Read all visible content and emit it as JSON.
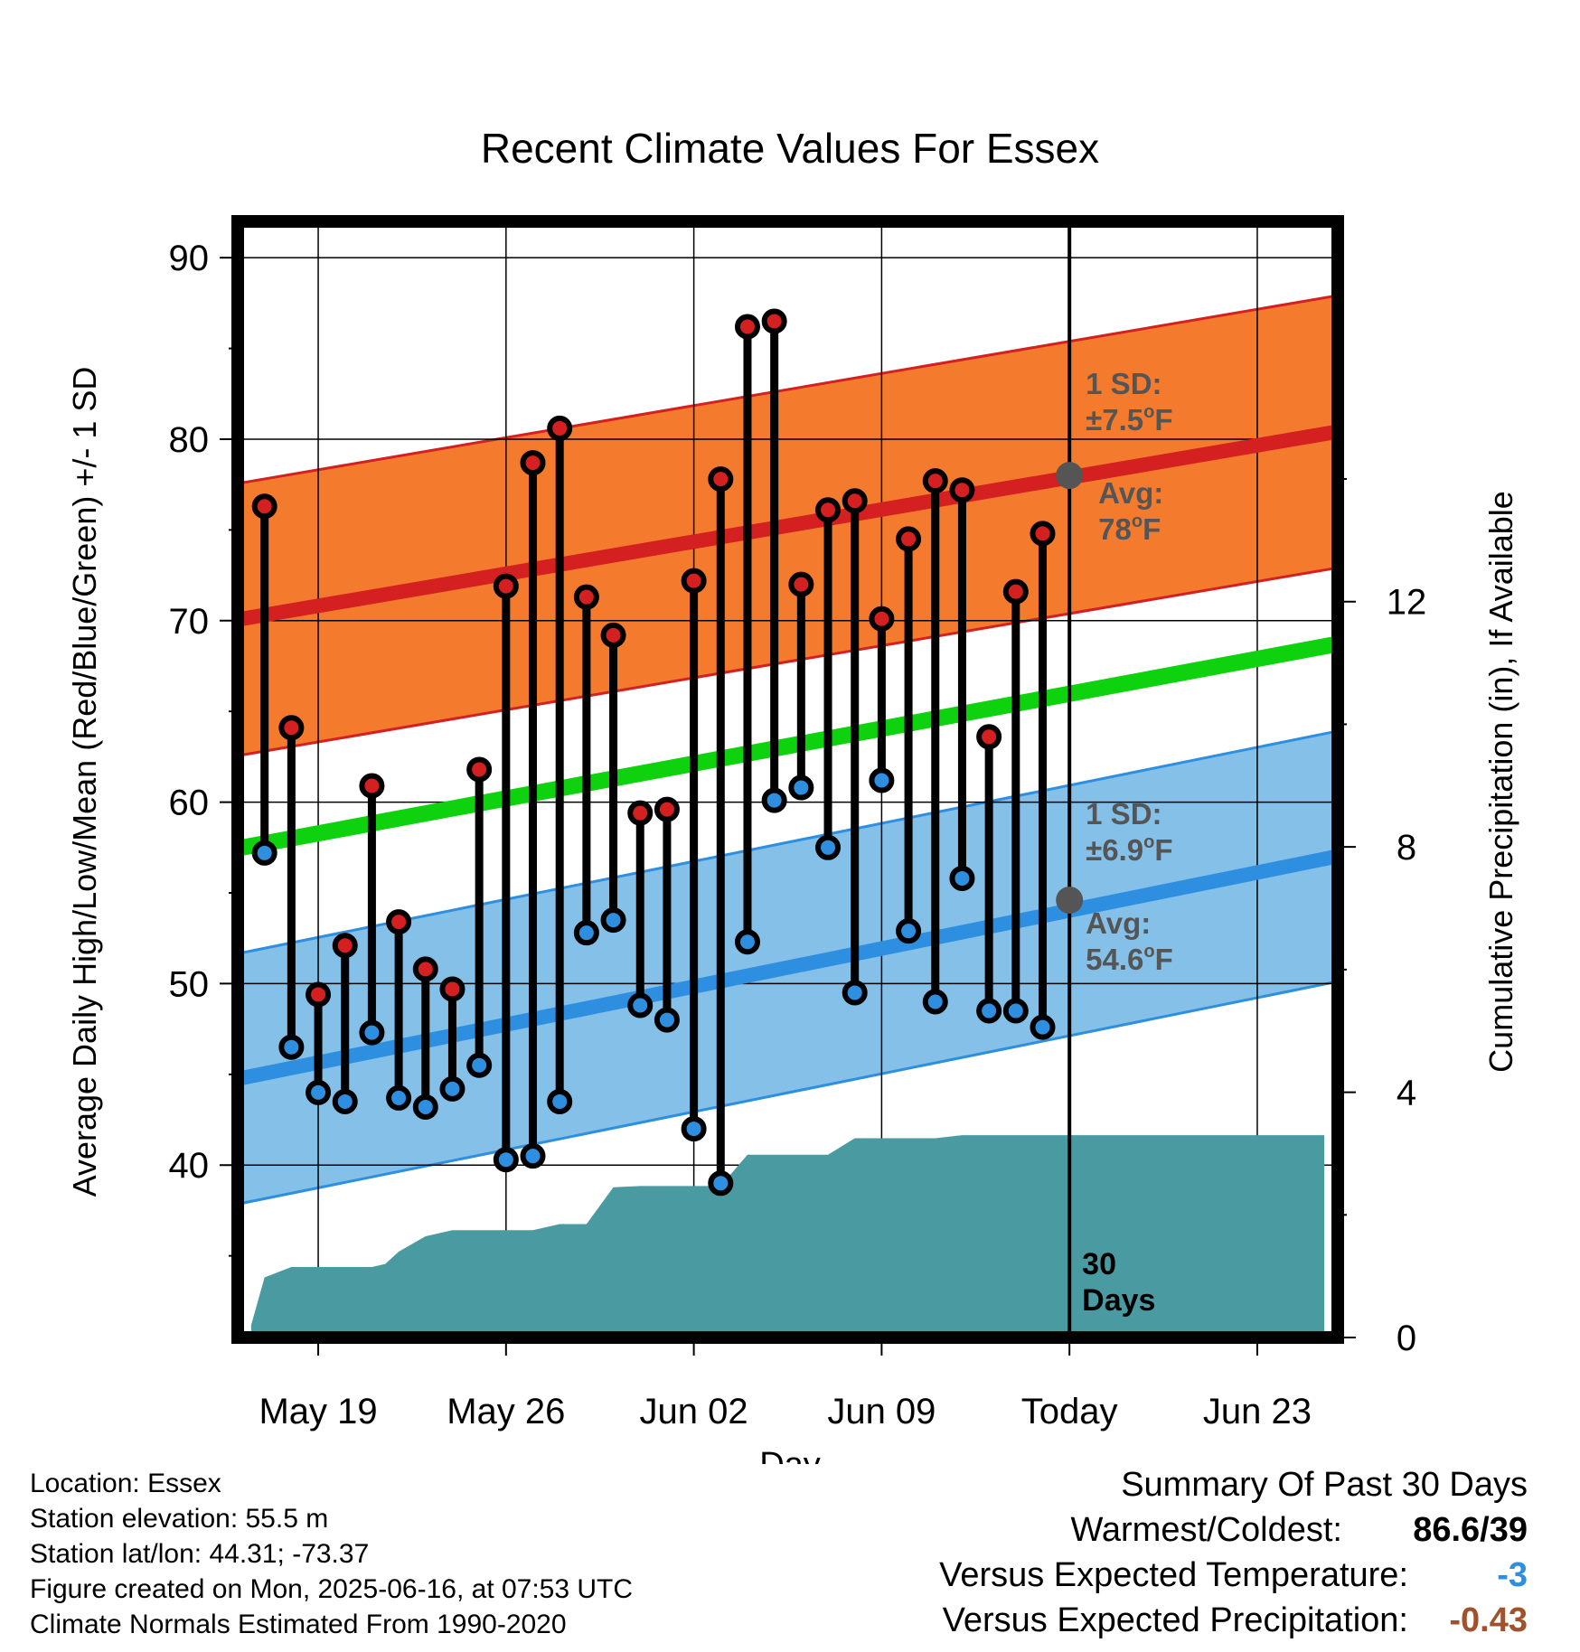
{
  "chart_data": {
    "type": "line",
    "title": "Recent Climate Values For Essex",
    "xlabel": "Day",
    "ylabel": "Average Daily High/Low/Mean (Red/Blue/Green) +/- 1 SD",
    "y2label": "Cumulative Precipitation (in), If Available",
    "ylim": [
      30.5,
      92
    ],
    "y2lim": [
      0,
      18.2
    ],
    "x_start": "May 16",
    "xlim_days": [
      0,
      41
    ],
    "x_ticks": [
      {
        "day": 3,
        "label": "May 19"
      },
      {
        "day": 10,
        "label": "May 26"
      },
      {
        "day": 17,
        "label": "Jun 02"
      },
      {
        "day": 24,
        "label": "Jun 09"
      },
      {
        "day": 31,
        "label": "Today"
      },
      {
        "day": 38,
        "label": "Jun 23"
      }
    ],
    "y_ticks": [
      40,
      50,
      60,
      70,
      80,
      90
    ],
    "y2_ticks": [
      0,
      4,
      8,
      12
    ],
    "today_day": 31,
    "days": [
      1,
      2,
      3,
      4,
      5,
      6,
      7,
      8,
      9,
      10,
      11,
      12,
      13,
      14,
      15,
      16,
      17,
      18,
      19,
      20,
      21,
      22,
      23,
      24,
      25,
      26,
      27,
      28,
      29,
      30
    ],
    "highs": [
      76.3,
      64.1,
      49.4,
      52.1,
      60.9,
      53.4,
      50.8,
      49.7,
      61.8,
      71.9,
      78.7,
      80.6,
      71.3,
      69.2,
      59.4,
      59.6,
      72.2,
      77.8,
      86.2,
      86.5,
      72.0,
      76.1,
      76.6,
      70.1,
      74.5,
      77.7,
      77.2,
      63.6,
      71.6,
      74.8
    ],
    "lows": [
      57.2,
      46.5,
      44.0,
      43.5,
      47.3,
      43.7,
      43.2,
      44.2,
      45.5,
      40.3,
      40.5,
      43.5,
      52.8,
      53.5,
      48.8,
      48.0,
      42.0,
      39.0,
      52.3,
      60.1,
      60.8,
      57.5,
      49.5,
      61.2,
      52.9,
      49.0,
      55.8,
      48.5,
      48.5,
      47.6
    ],
    "normal_high": {
      "start": 70.1,
      "end": 80.4,
      "sd_label": "1 SD:",
      "sd_value": "±7.5",
      "avg_label": "Avg:",
      "avg_value": "78",
      "unit": "F",
      "today_avg": 78
    },
    "normal_low": {
      "start": 44.8,
      "end": 57.0,
      "sd_label": "1 SD:",
      "sd_value": "±6.9",
      "avg_label": "Avg:",
      "avg_value": "54.6",
      "unit": "F",
      "today_avg": 54.6
    },
    "normal_mean": {
      "start": 57.5,
      "end": 68.7
    },
    "high_sd": 7.5,
    "low_sd": 6.9,
    "precip_days": [
      0.5,
      1,
      2,
      3,
      4,
      5,
      5.5,
      6,
      7,
      8,
      9,
      10,
      11,
      12,
      13,
      14,
      15,
      16,
      17,
      18,
      19,
      20,
      21,
      22,
      23,
      24,
      25,
      26,
      27,
      28,
      29,
      30,
      31,
      40.5
    ],
    "precip_cum": [
      0.2,
      0.98,
      1.15,
      1.15,
      1.15,
      1.15,
      1.2,
      1.4,
      1.65,
      1.75,
      1.75,
      1.75,
      1.75,
      1.85,
      1.85,
      2.45,
      2.47,
      2.47,
      2.47,
      2.47,
      2.98,
      2.98,
      2.98,
      2.98,
      3.25,
      3.25,
      3.25,
      3.25,
      3.3,
      3.3,
      3.3,
      3.3,
      3.3,
      3.3
    ],
    "window_label_line1": "30",
    "window_label_line2": "Days"
  },
  "colors": {
    "high": "#d42020",
    "low": "#2e8fe0",
    "mean": "#0fd20f",
    "high_band": "#f47b2e",
    "low_band": "#84c0e8",
    "precip": "#4a9aa2",
    "annotation": "#555555",
    "temp_diff": "#2e8fe0",
    "precip_diff": "#a0522d"
  },
  "info": {
    "location": "Location: Essex",
    "elevation": "Station elevation: 55.5 m",
    "latlon": "Station lat/lon: 44.31; -73.37",
    "created": "Figure created on Mon, 2025-06-16, at 07:53 UTC",
    "normals": "Climate Normals Estimated From 1990-2020"
  },
  "summary": {
    "title": "Summary Of Past 30 Days",
    "warmest_label": "Warmest/Coldest:",
    "warmest_value": "86.6/39",
    "temp_label": "Versus Expected Temperature:",
    "temp_value": "-3",
    "precip_label": "Versus Expected Precipitation:",
    "precip_value": "-0.43"
  }
}
